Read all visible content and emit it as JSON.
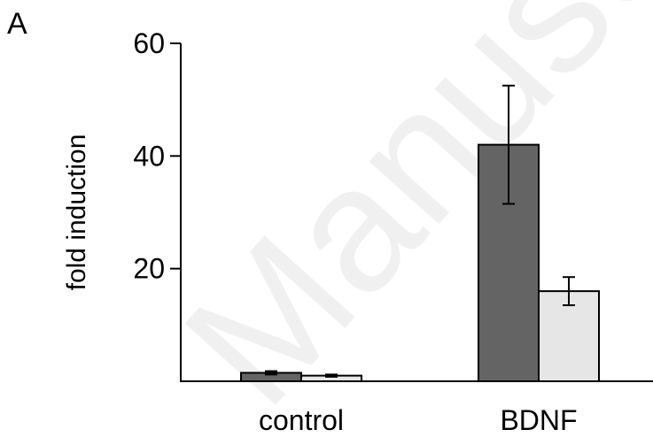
{
  "panel_label": "A",
  "watermark_text": "Manuscript",
  "chart_data": {
    "type": "bar",
    "title": "",
    "xlabel": "",
    "ylabel": "fold induction",
    "ylim": [
      0,
      60
    ],
    "yticks": [
      20,
      40,
      60
    ],
    "categories": [
      "control",
      "BDNF"
    ],
    "series": [
      {
        "values": [
          1.5,
          42
        ],
        "errors": [
          0.3,
          10.5
        ],
        "color": "#646464"
      },
      {
        "values": [
          1.0,
          16
        ],
        "errors": [
          0.2,
          2.5
        ],
        "color": "#e6e6e6"
      }
    ],
    "grid": false,
    "legend": "none"
  }
}
